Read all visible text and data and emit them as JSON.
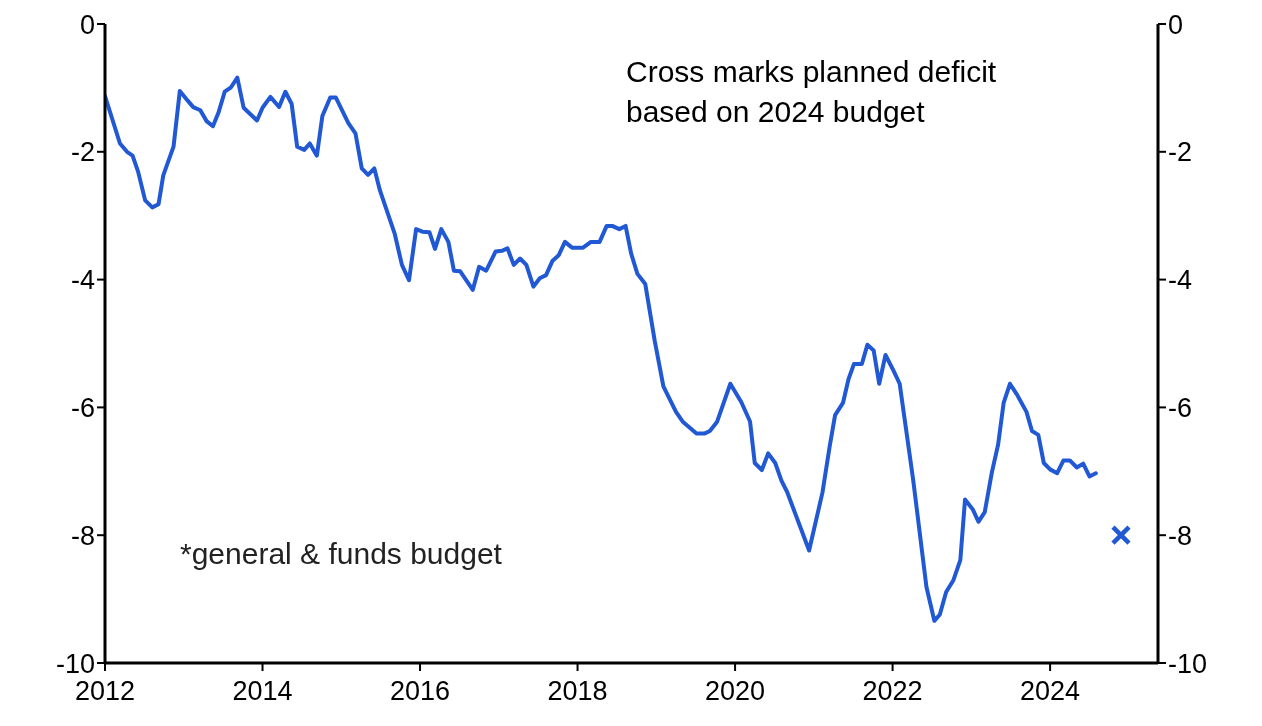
{
  "chart_data": {
    "type": "line",
    "annotations": [
      "Cross marks  planned deficit based on 2024 budget",
      "*general & funds budget"
    ],
    "series": [
      {
        "type": "line",
        "color": "#2158d4",
        "marker": "none",
        "x": [
          2012.0,
          2012.19,
          2012.28,
          2012.35,
          2012.42,
          2012.51,
          2012.6,
          2012.68,
          2012.74,
          2012.87,
          2012.95,
          2013.05,
          2013.12,
          2013.21,
          2013.29,
          2013.37,
          2013.44,
          2013.52,
          2013.6,
          2013.68,
          2013.76,
          2013.93,
          2014.0,
          2014.1,
          2014.21,
          2014.29,
          2014.37,
          2014.44,
          2014.53,
          2014.6,
          2014.69,
          2014.76,
          2014.86,
          2014.93,
          2015.09,
          2015.18,
          2015.26,
          2015.34,
          2015.42,
          2015.49,
          2015.68,
          2015.77,
          2015.86,
          2015.95,
          2016.03,
          2016.12,
          2016.19,
          2016.27,
          2016.36,
          2016.43,
          2016.51,
          2016.67,
          2016.75,
          2016.84,
          2016.96,
          2017.04,
          2017.11,
          2017.19,
          2017.27,
          2017.35,
          2017.44,
          2017.52,
          2017.6,
          2017.68,
          2017.76,
          2017.84,
          2017.93,
          2018.07,
          2018.17,
          2018.28,
          2018.37,
          2018.44,
          2018.53,
          2018.61,
          2018.68,
          2018.76,
          2018.86,
          2018.98,
          2019.09,
          2019.25,
          2019.34,
          2019.51,
          2019.61,
          2019.68,
          2019.77,
          2019.94,
          2020.08,
          2020.19,
          2020.25,
          2020.34,
          2020.42,
          2020.51,
          2020.59,
          2020.66,
          2020.94,
          2021.11,
          2021.2,
          2021.27,
          2021.37,
          2021.44,
          2021.51,
          2021.61,
          2021.68,
          2021.76,
          2021.83,
          2021.91,
          2022.01,
          2022.09,
          2022.26,
          2022.43,
          2022.53,
          2022.6,
          2022.68,
          2022.77,
          2022.86,
          2022.92,
          2023.02,
          2023.09,
          2023.17,
          2023.26,
          2023.34,
          2023.41,
          2023.49,
          2023.58,
          2023.7,
          2023.77,
          2023.85,
          2023.92,
          2024.0,
          2024.09,
          2024.17,
          2024.25,
          2024.34,
          2024.42,
          2024.5,
          2024.58
        ],
        "values": [
          -1.13,
          -1.87,
          -2.0,
          -2.06,
          -2.31,
          -2.76,
          -2.87,
          -2.82,
          -2.37,
          -1.92,
          -1.05,
          -1.2,
          -1.3,
          -1.35,
          -1.52,
          -1.6,
          -1.39,
          -1.06,
          -0.99,
          -0.84,
          -1.31,
          -1.51,
          -1.31,
          -1.14,
          -1.3,
          -1.06,
          -1.25,
          -1.92,
          -1.97,
          -1.87,
          -2.06,
          -1.44,
          -1.15,
          -1.15,
          -1.55,
          -1.71,
          -2.26,
          -2.36,
          -2.26,
          -2.6,
          -3.29,
          -3.77,
          -4.01,
          -3.21,
          -3.25,
          -3.26,
          -3.52,
          -3.21,
          -3.41,
          -3.86,
          -3.87,
          -4.16,
          -3.8,
          -3.86,
          -3.56,
          -3.55,
          -3.51,
          -3.77,
          -3.67,
          -3.77,
          -4.11,
          -3.98,
          -3.93,
          -3.71,
          -3.62,
          -3.41,
          -3.5,
          -3.5,
          -3.41,
          -3.41,
          -3.16,
          -3.16,
          -3.21,
          -3.16,
          -3.59,
          -3.91,
          -4.07,
          -4.96,
          -5.67,
          -6.07,
          -6.23,
          -6.41,
          -6.41,
          -6.37,
          -6.23,
          -5.63,
          -5.92,
          -6.22,
          -6.87,
          -6.98,
          -6.72,
          -6.87,
          -7.15,
          -7.32,
          -8.24,
          -7.33,
          -6.62,
          -6.12,
          -5.93,
          -5.56,
          -5.32,
          -5.32,
          -5.02,
          -5.11,
          -5.63,
          -5.18,
          -5.42,
          -5.63,
          -7.12,
          -8.81,
          -9.34,
          -9.24,
          -8.89,
          -8.71,
          -8.39,
          -7.44,
          -7.6,
          -7.79,
          -7.64,
          -7.02,
          -6.58,
          -5.93,
          -5.63,
          -5.8,
          -6.07,
          -6.37,
          -6.43,
          -6.87,
          -6.97,
          -7.03,
          -6.83,
          -6.83,
          -6.94,
          -6.88,
          -7.08,
          -7.03
        ]
      },
      {
        "type": "scatter",
        "color": "#2158d4",
        "marker": "cross",
        "x": [
          2024.9
        ],
        "values": [
          -8.0
        ]
      }
    ],
    "xlim": [
      2012,
      2025.37
    ],
    "xticks": [
      2012,
      2014,
      2016,
      2018,
      2020,
      2022,
      2024
    ],
    "ylim": [
      -10,
      0
    ],
    "yticks": [
      -10,
      -8,
      -6,
      -4,
      -2,
      0
    ],
    "y2lim": [
      -10,
      0
    ],
    "y2ticks": [
      -10,
      -8,
      -6,
      -4,
      -2,
      0
    ],
    "grid": false
  }
}
